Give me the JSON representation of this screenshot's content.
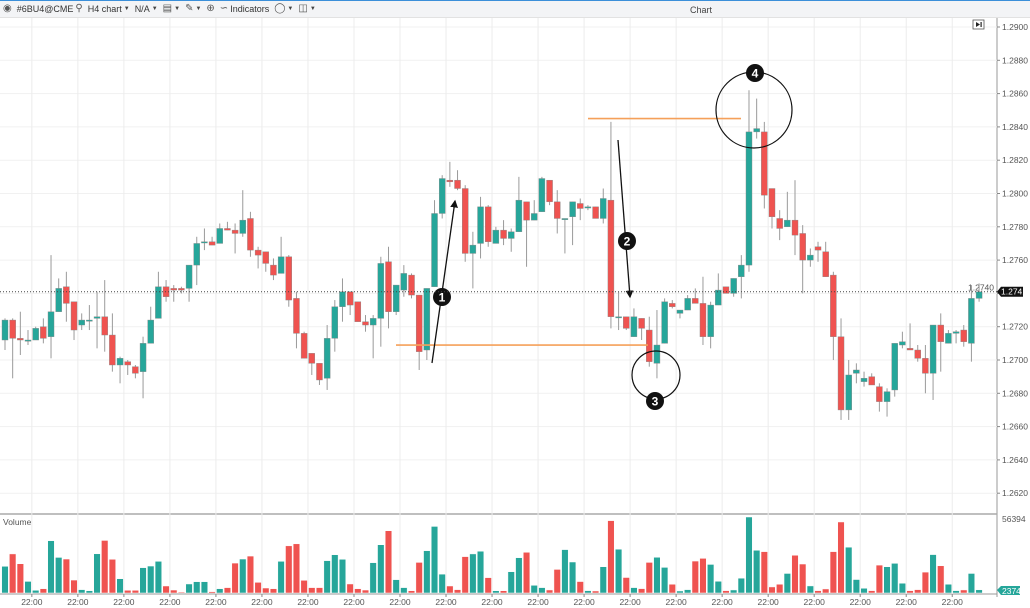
{
  "toolbar": {
    "symbol": "#6BU4@CME",
    "timeframe": "H4 chart",
    "mode": "N/A",
    "indicators_label": "Indicators",
    "window_title": "Chart"
  },
  "icons": [
    "app-logo-icon",
    "search-icon",
    "chevron-down-icon",
    "display-icon",
    "pencil-icon",
    "zoom-icon",
    "indicators-icon",
    "circle-tool-icon",
    "window-icon",
    "scroll-to-end-icon"
  ],
  "colors": {
    "up": "#26a69a",
    "down": "#ef5350",
    "annotation_line": "#f5a05a",
    "annotation": "#111111"
  },
  "price_axis": {
    "ticks": [
      "1.2900",
      "1.2880",
      "1.2860",
      "1.2840",
      "1.2820",
      "1.2800",
      "1.2780",
      "1.2760",
      "1.2740",
      "1.2720",
      "1.2700",
      "1.2680",
      "1.2660",
      "1.2640",
      "1.2620"
    ],
    "last_price": "1.2741"
  },
  "volume_pane": {
    "label": "Volume",
    "max_label": "56394",
    "last_volume": "2374"
  },
  "time_axis": {
    "labels": [
      "22:00",
      "22:00",
      "22:00",
      "22:00",
      "22:00",
      "22:00",
      "22:00",
      "22:00",
      "22:00",
      "22:00",
      "22:00",
      "22:00",
      "22:00",
      "22:00",
      "22:00",
      "22:00",
      "22:00",
      "22:00",
      "22:00",
      "22:00",
      "22:00"
    ]
  },
  "annotations": {
    "markers": [
      "1",
      "2",
      "3",
      "4"
    ],
    "levels": [
      1.2845,
      1.2709
    ]
  },
  "chart_data": {
    "type": "candlestick",
    "timeframe": "H4",
    "ylim": [
      1.2605,
      1.2905
    ],
    "ohlc": [
      [
        1.2712,
        1.2725,
        1.2706,
        1.2724
      ],
      [
        1.2724,
        1.2725,
        1.2689,
        1.2713
      ],
      [
        1.2713,
        1.2729,
        1.2703,
        1.2712
      ],
      [
        1.2712,
        1.2718,
        1.2709,
        1.2712
      ],
      [
        1.2712,
        1.272,
        1.2712,
        1.2719
      ],
      [
        1.272,
        1.2725,
        1.271,
        1.2713
      ],
      [
        1.2714,
        1.2763,
        1.2701,
        1.2729
      ],
      [
        1.2729,
        1.2749,
        1.2729,
        1.2743
      ],
      [
        1.2744,
        1.2753,
        1.2723,
        1.2734
      ],
      [
        1.2735,
        1.2735,
        1.2712,
        1.2718
      ],
      [
        1.2721,
        1.2728,
        1.2718,
        1.2724
      ],
      [
        1.2724,
        1.2733,
        1.2718,
        1.2724
      ],
      [
        1.2725,
        1.2741,
        1.2707,
        1.2726
      ],
      [
        1.2726,
        1.2748,
        1.2705,
        1.2715
      ],
      [
        1.2715,
        1.2728,
        1.2693,
        1.2697
      ],
      [
        1.2697,
        1.2702,
        1.2686,
        1.2701
      ],
      [
        1.2699,
        1.27,
        1.2691,
        1.2697
      ],
      [
        1.2696,
        1.2697,
        1.2689,
        1.2692
      ],
      [
        1.2693,
        1.2714,
        1.2677,
        1.271
      ],
      [
        1.271,
        1.2732,
        1.271,
        1.2724
      ],
      [
        1.2725,
        1.2753,
        1.2725,
        1.2744
      ],
      [
        1.2744,
        1.2748,
        1.2735,
        1.2738
      ],
      [
        1.2743,
        1.2745,
        1.2735,
        1.2742
      ],
      [
        1.2743,
        1.2744,
        1.274,
        1.2742
      ],
      [
        1.2743,
        1.2757,
        1.2735,
        1.2757
      ],
      [
        1.2757,
        1.2774,
        1.2745,
        1.277
      ],
      [
        1.2771,
        1.2779,
        1.2766,
        1.2771
      ],
      [
        1.2771,
        1.2774,
        1.2769,
        1.2769
      ],
      [
        1.277,
        1.2782,
        1.277,
        1.2779
      ],
      [
        1.2779,
        1.2783,
        1.2778,
        1.2778
      ],
      [
        1.2778,
        1.2782,
        1.2764,
        1.2776
      ],
      [
        1.2776,
        1.2802,
        1.2774,
        1.2784
      ],
      [
        1.2785,
        1.2789,
        1.2762,
        1.2766
      ],
      [
        1.2766,
        1.2768,
        1.2755,
        1.2763
      ],
      [
        1.2765,
        1.2765,
        1.2753,
        1.2758
      ],
      [
        1.2757,
        1.2761,
        1.2748,
        1.2751
      ],
      [
        1.2752,
        1.2774,
        1.2752,
        1.2762
      ],
      [
        1.2762,
        1.2763,
        1.2732,
        1.2736
      ],
      [
        1.2737,
        1.2741,
        1.2707,
        1.2716
      ],
      [
        1.2716,
        1.2717,
        1.2701,
        1.2701
      ],
      [
        1.2704,
        1.2704,
        1.2691,
        1.2698
      ],
      [
        1.2698,
        1.2698,
        1.2685,
        1.2688
      ],
      [
        1.2689,
        1.2721,
        1.2682,
        1.2713
      ],
      [
        1.2713,
        1.2736,
        1.2705,
        1.2732
      ],
      [
        1.2732,
        1.2749,
        1.2723,
        1.2741
      ],
      [
        1.2741,
        1.2741,
        1.2727,
        1.2733
      ],
      [
        1.2735,
        1.2735,
        1.2723,
        1.2723
      ],
      [
        1.2723,
        1.2727,
        1.2717,
        1.2721
      ],
      [
        1.2721,
        1.2727,
        1.2701,
        1.2725
      ],
      [
        1.2725,
        1.2762,
        1.2708,
        1.2758
      ],
      [
        1.2759,
        1.2768,
        1.2719,
        1.2729
      ],
      [
        1.2729,
        1.2745,
        1.2727,
        1.2745
      ],
      [
        1.2742,
        1.2757,
        1.2738,
        1.2752
      ],
      [
        1.2751,
        1.2752,
        1.2737,
        1.2739
      ],
      [
        1.2739,
        1.2739,
        1.2694,
        1.2705
      ],
      [
        1.2706,
        1.2743,
        1.27,
        1.2743
      ],
      [
        1.2744,
        1.2796,
        1.2744,
        1.2788
      ],
      [
        1.2788,
        1.2811,
        1.2785,
        1.2809
      ],
      [
        1.2808,
        1.2819,
        1.2804,
        1.2807
      ],
      [
        1.2808,
        1.2814,
        1.2802,
        1.2803
      ],
      [
        1.2803,
        1.2805,
        1.2759,
        1.2764
      ],
      [
        1.2764,
        1.2777,
        1.2743,
        1.2769
      ],
      [
        1.277,
        1.2798,
        1.2761,
        1.2792
      ],
      [
        1.2792,
        1.2793,
        1.2768,
        1.2771
      ],
      [
        1.277,
        1.278,
        1.277,
        1.2778
      ],
      [
        1.2778,
        1.2784,
        1.2769,
        1.2773
      ],
      [
        1.2773,
        1.2779,
        1.2765,
        1.2777
      ],
      [
        1.2777,
        1.281,
        1.2777,
        1.2796
      ],
      [
        1.2795,
        1.2795,
        1.2756,
        1.2784
      ],
      [
        1.2784,
        1.2796,
        1.2784,
        1.2788
      ],
      [
        1.2789,
        1.281,
        1.2789,
        1.2809
      ],
      [
        1.2808,
        1.2808,
        1.2793,
        1.2795
      ],
      [
        1.2795,
        1.2802,
        1.2776,
        1.2785
      ],
      [
        1.2785,
        1.2785,
        1.2764,
        1.2785
      ],
      [
        1.2786,
        1.2795,
        1.2769,
        1.2795
      ],
      [
        1.2794,
        1.2797,
        1.2784,
        1.2791
      ],
      [
        1.2792,
        1.2793,
        1.279,
        1.2792
      ],
      [
        1.2792,
        1.2792,
        1.2785,
        1.2785
      ],
      [
        1.2785,
        1.2803,
        1.2782,
        1.2797
      ],
      [
        1.2796,
        1.2843,
        1.2719,
        1.2726
      ],
      [
        1.2726,
        1.2741,
        1.2718,
        1.2726
      ],
      [
        1.2726,
        1.2726,
        1.2718,
        1.2719
      ],
      [
        1.2714,
        1.2731,
        1.2714,
        1.2726
      ],
      [
        1.2725,
        1.2725,
        1.2712,
        1.2719
      ],
      [
        1.2718,
        1.2726,
        1.2696,
        1.2699
      ],
      [
        1.2698,
        1.273,
        1.2689,
        1.2709
      ],
      [
        1.271,
        1.2737,
        1.271,
        1.2735
      ],
      [
        1.2734,
        1.2736,
        1.2731,
        1.2732
      ],
      [
        1.2728,
        1.273,
        1.2725,
        1.273
      ],
      [
        1.273,
        1.2739,
        1.273,
        1.2737
      ],
      [
        1.2737,
        1.2743,
        1.2734,
        1.2734
      ],
      [
        1.2734,
        1.275,
        1.2709,
        1.2714
      ],
      [
        1.2714,
        1.2735,
        1.2707,
        1.2733
      ],
      [
        1.2733,
        1.2752,
        1.2733,
        1.2742
      ],
      [
        1.2744,
        1.2744,
        1.274,
        1.274
      ],
      [
        1.274,
        1.2749,
        1.2738,
        1.2749
      ],
      [
        1.275,
        1.2763,
        1.2737,
        1.2757
      ],
      [
        1.2757,
        1.2862,
        1.2753,
        1.2837
      ],
      [
        1.2837,
        1.2857,
        1.2833,
        1.2839
      ],
      [
        1.2837,
        1.2843,
        1.2791,
        1.2799
      ],
      [
        1.2803,
        1.2803,
        1.2779,
        1.2786
      ],
      [
        1.2785,
        1.279,
        1.2772,
        1.2779
      ],
      [
        1.278,
        1.2801,
        1.278,
        1.2784
      ],
      [
        1.2784,
        1.2808,
        1.2763,
        1.2775
      ],
      [
        1.2776,
        1.2781,
        1.274,
        1.276
      ],
      [
        1.276,
        1.2767,
        1.2756,
        1.2763
      ],
      [
        1.2768,
        1.2771,
        1.2759,
        1.2766
      ],
      [
        1.2765,
        1.2771,
        1.275,
        1.275
      ],
      [
        1.2751,
        1.2753,
        1.27,
        1.2714
      ],
      [
        1.2714,
        1.2725,
        1.2664,
        1.267
      ],
      [
        1.267,
        1.27,
        1.2664,
        1.2691
      ],
      [
        1.2692,
        1.2698,
        1.2686,
        1.2694
      ],
      [
        1.2687,
        1.2693,
        1.2684,
        1.2689
      ],
      [
        1.269,
        1.2692,
        1.2685,
        1.2685
      ],
      [
        1.2684,
        1.2686,
        1.2669,
        1.2675
      ],
      [
        1.2675,
        1.2683,
        1.2666,
        1.2681
      ],
      [
        1.2682,
        1.271,
        1.2678,
        1.271
      ],
      [
        1.2709,
        1.2717,
        1.2707,
        1.2711
      ],
      [
        1.2707,
        1.2722,
        1.2706,
        1.2706
      ],
      [
        1.2706,
        1.2709,
        1.2699,
        1.2701
      ],
      [
        1.2701,
        1.2709,
        1.268,
        1.2692
      ],
      [
        1.2692,
        1.2721,
        1.2676,
        1.2721
      ],
      [
        1.2721,
        1.2728,
        1.2693,
        1.2711
      ],
      [
        1.271,
        1.2718,
        1.271,
        1.2716
      ],
      [
        1.2716,
        1.2718,
        1.271,
        1.2717
      ],
      [
        1.2718,
        1.2721,
        1.2708,
        1.2711
      ],
      [
        1.271,
        1.2745,
        1.2699,
        1.2737
      ],
      [
        1.2737,
        1.2746,
        1.2735,
        1.2741
      ]
    ],
    "volume": [
      19800,
      29000,
      21700,
      8600,
      2000,
      3200,
      38800,
      26400,
      25200,
      9600,
      2500,
      1700,
      29100,
      39000,
      25000,
      10600,
      2000,
      2000,
      18800,
      20000,
      23500,
      5200,
      2200,
      700,
      6700,
      8400,
      8400,
      1000,
      3200,
      4000,
      22200,
      25200,
      27400,
      7900,
      3700,
      3200,
      23500,
      35000,
      36500,
      9400,
      4000,
      4000,
      24000,
      28400,
      25000,
      6700,
      3200,
      2200,
      22500,
      35800,
      46200,
      9900,
      4000,
      1700,
      22700,
      31400,
      49400,
      14000,
      5200,
      2500,
      27000,
      29000,
      31000,
      11400,
      1700,
      1700,
      15800,
      26200,
      30200,
      5700,
      4000,
      2250,
      17500,
      32200,
      23000,
      8500,
      1750,
      1500,
      19500,
      53700,
      32500,
      11500,
      4000,
      3250,
      22700,
      26500,
      19000,
      6500,
      1500,
      2500,
      23700,
      25700,
      21200,
      8700,
      1750,
      2250,
      11000,
      56394,
      31700,
      30700,
      4500,
      6500,
      14500,
      28000,
      21500,
      5250,
      1750,
      3000,
      30700,
      52700,
      34000,
      10000,
      3500,
      1750,
      20700,
      19500,
      22000,
      7250,
      1750,
      2500,
      15500,
      28500,
      20200,
      6500,
      1750,
      2250,
      14500,
      2374
    ]
  }
}
